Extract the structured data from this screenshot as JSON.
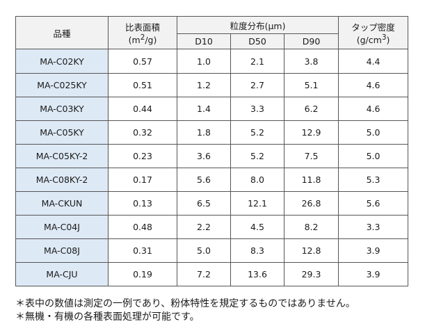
{
  "header": {
    "product": "品種",
    "ssa_line1": "比表面積",
    "ssa_unit_pre": "(m",
    "ssa_unit_sup": "2",
    "ssa_unit_post": "/g)",
    "psd": "粒度分布(μm)",
    "d10": "D10",
    "d50": "D50",
    "d90": "D90",
    "tap_line1": "タップ密度",
    "tap_unit_pre": "(g/cm",
    "tap_unit_sup": "3",
    "tap_unit_post": ")"
  },
  "rows": [
    {
      "name": "MA-C02KY",
      "ssa": "0.57",
      "d10": "1.0",
      "d50": "2.1",
      "d90": "3.8",
      "tap": "4.4"
    },
    {
      "name": "MA-C025KY",
      "ssa": "0.51",
      "d10": "1.2",
      "d50": "2.7",
      "d90": "5.1",
      "tap": "4.6"
    },
    {
      "name": "MA-C03KY",
      "ssa": "0.44",
      "d10": "1.4",
      "d50": "3.3",
      "d90": "6.2",
      "tap": "4.6"
    },
    {
      "name": "MA-C05KY",
      "ssa": "0.32",
      "d10": "1.8",
      "d50": "5.2",
      "d90": "12.9",
      "tap": "5.0"
    },
    {
      "name": "MA-C05KY-2",
      "ssa": "0.23",
      "d10": "3.6",
      "d50": "5.2",
      "d90": "7.5",
      "tap": "5.0"
    },
    {
      "name": "MA-C08KY-2",
      "ssa": "0.17",
      "d10": "5.6",
      "d50": "8.0",
      "d90": "11.8",
      "tap": "5.3"
    },
    {
      "name": "MA-CKUN",
      "ssa": "0.13",
      "d10": "6.5",
      "d50": "12.1",
      "d90": "26.8",
      "tap": "5.6"
    },
    {
      "name": "MA-C04J",
      "ssa": "0.48",
      "d10": "2.2",
      "d50": "4.5",
      "d90": "8.2",
      "tap": "3.3"
    },
    {
      "name": "MA-C08J",
      "ssa": "0.31",
      "d10": "5.0",
      "d50": "8.3",
      "d90": "12.8",
      "tap": "3.9"
    },
    {
      "name": "MA-CJU",
      "ssa": "0.19",
      "d10": "7.2",
      "d50": "13.6",
      "d90": "29.3",
      "tap": "3.9"
    }
  ],
  "notes": [
    "＊表中の数値は測定の一例であり、粉体特性を規定するものではありません。",
    "＊無機・有機の各種表面処理が可能です。"
  ]
}
